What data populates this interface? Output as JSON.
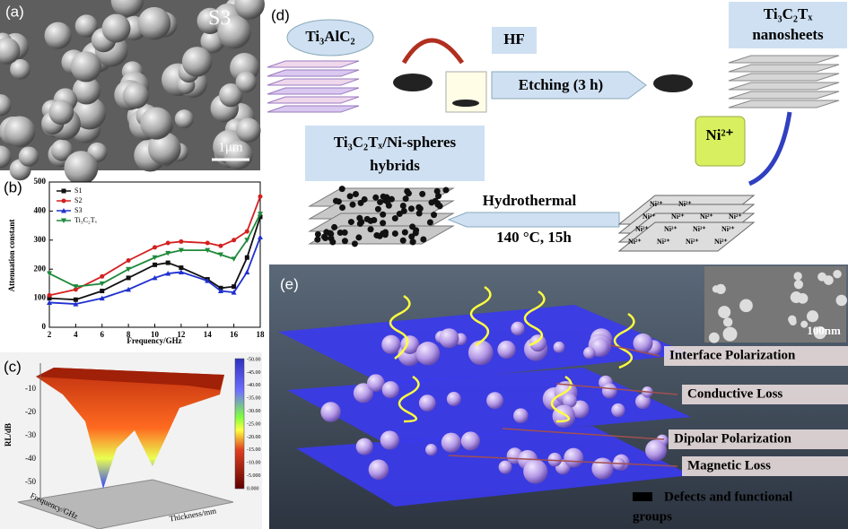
{
  "panel_a": {
    "label": "(a)",
    "sample": "S3",
    "scale": "1μm"
  },
  "chart_data": {
    "type": "line",
    "label": "(b)",
    "x_label": "Frequency/GHz",
    "y_label": "Attenuation constant",
    "x": [
      2,
      4,
      6,
      8,
      10,
      11,
      12,
      14,
      15,
      16,
      17,
      18
    ],
    "xlim": [
      2,
      18
    ],
    "xticks": [
      2,
      4,
      6,
      8,
      10,
      12,
      14,
      16,
      18
    ],
    "ylim": [
      0,
      500
    ],
    "yticks": [
      0,
      100,
      200,
      300,
      400,
      500
    ],
    "legend": "upper left",
    "series": [
      {
        "name": "S1",
        "color": "#111111",
        "marker": "square",
        "values": [
          100,
          95,
          125,
          170,
          215,
          222,
          205,
          165,
          135,
          140,
          240,
          380
        ]
      },
      {
        "name": "S2",
        "color": "#d42020",
        "marker": "circle",
        "values": [
          110,
          130,
          175,
          230,
          275,
          290,
          295,
          290,
          280,
          300,
          330,
          450
        ]
      },
      {
        "name": "S3",
        "color": "#2030d0",
        "marker": "triangle",
        "values": [
          85,
          80,
          100,
          130,
          170,
          185,
          190,
          160,
          125,
          120,
          190,
          310
        ]
      },
      {
        "name": "Ti₃C₂Tₓ",
        "color": "#1e8a3a",
        "marker": "triangle-down",
        "values": [
          185,
          140,
          150,
          200,
          240,
          255,
          265,
          265,
          250,
          235,
          300,
          390
        ]
      }
    ]
  },
  "panel_c": {
    "label": "(c)",
    "z_label": "RL/dB",
    "x_label": "Frequency/GHz",
    "y_label": "Thickness/mm",
    "zticks": [
      "-10",
      "-20",
      "-30",
      "-40",
      "-50"
    ],
    "colorbar": [
      "-50.00",
      "-45.00",
      "-40.00",
      "-35.00",
      "-30.00",
      "-25.00",
      "-20.00",
      "-15.00",
      "-10.00",
      "-5.000",
      "0.000"
    ]
  },
  "panel_d": {
    "label": "(d)",
    "precursor": "Ti₃AlC₂",
    "acid": "HF",
    "step1": "Etching (3 h)",
    "product_line1": "Ti₃C₂Tₓ",
    "product_line2": "nanosheets",
    "ion": "Ni²⁺",
    "hybrid_line1": "Ti₃C₂Tₓ/Ni-spheres",
    "hybrid_line2": "hybrids",
    "step2": "Hydrothermal",
    "condition": "140 °C, 15h"
  },
  "panel_e": {
    "label": "(e)",
    "scale": "100nm",
    "mechanisms": [
      "Interface Polarization",
      "Conductive Loss",
      "Dipolar Polarization",
      "Magnetic Loss"
    ],
    "legend_line1": "Defects and functional",
    "legend_line2": "groups"
  }
}
